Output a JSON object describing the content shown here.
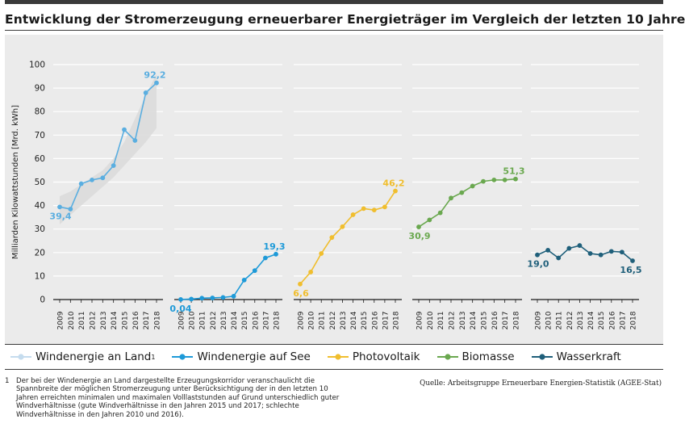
{
  "title": "Entwicklung der Stromerzeugung erneuerbarer Energieträger im Vergleich der letzten 10 Jahre",
  "chart_data": {
    "type": "line",
    "ylabel": "Milliarden Kilowattstunden [Mrd. kWh]",
    "ylim": [
      0,
      100
    ],
    "yticks": [
      0,
      10,
      20,
      30,
      40,
      50,
      60,
      70,
      80,
      90,
      100
    ],
    "years": [
      "2009",
      "2010",
      "2011",
      "2012",
      "2013",
      "2014",
      "2015",
      "2016",
      "2017",
      "2018"
    ],
    "series": [
      {
        "name": "Windenergie an Land",
        "note": "1",
        "color": "#5aaee0",
        "values": [
          39.4,
          38.5,
          49.3,
          50.9,
          51.8,
          57.0,
          72.3,
          67.7,
          88.0,
          92.2
        ],
        "corridor_min": [
          32,
          36,
          40,
          44,
          48,
          52,
          57,
          62,
          67,
          73
        ],
        "corridor_max": [
          44,
          46,
          49,
          52,
          55,
          60,
          67,
          77,
          87,
          96
        ],
        "start_label": "39,4",
        "end_label": "92,2"
      },
      {
        "name": "Windenergie auf See",
        "color": "#1e9ad8",
        "values": [
          0.04,
          0.2,
          0.6,
          0.7,
          0.9,
          1.4,
          8.3,
          12.3,
          17.7,
          19.3
        ],
        "start_label": "0,04",
        "end_label": "19,3"
      },
      {
        "name": "Photovoltaik",
        "color": "#f0be2e",
        "values": [
          6.6,
          11.7,
          19.6,
          26.4,
          31.0,
          36.1,
          38.7,
          38.1,
          39.4,
          46.2
        ],
        "start_label": "6,6",
        "end_label": "46,2"
      },
      {
        "name": "Biomasse",
        "color": "#6aa84f",
        "values": [
          30.9,
          33.9,
          36.9,
          43.2,
          45.5,
          48.3,
          50.3,
          50.9,
          50.9,
          51.3
        ],
        "start_label": "30,9",
        "end_label": "51,3"
      },
      {
        "name": "Wasserkraft",
        "color": "#1f5f7a",
        "values": [
          19.0,
          21.0,
          17.7,
          21.8,
          23.0,
          19.6,
          19.0,
          20.5,
          20.2,
          16.5
        ],
        "start_label": "19,0",
        "end_label": "16,5"
      }
    ]
  },
  "legend": [
    {
      "label": "Windenergie an Land",
      "sup": "1",
      "color": "#c5dcee",
      "icon": "light-line-marker-icon"
    },
    {
      "label": "Windenergie auf See",
      "sup": "",
      "color": "#1e9ad8",
      "icon": "line-marker-icon"
    },
    {
      "label": "Photovoltaik",
      "sup": "",
      "color": "#f0be2e",
      "icon": "line-marker-icon"
    },
    {
      "label": "Biomasse",
      "sup": "",
      "color": "#6aa84f",
      "icon": "line-marker-icon"
    },
    {
      "label": "Wasserkraft",
      "sup": "",
      "color": "#1f5f7a",
      "icon": "line-marker-icon"
    }
  ],
  "footnote": {
    "number": "1",
    "text": "Der bei der Windenergie an Land dargestellte Erzeugungskorridor veranschaulicht die Spannbreite der möglichen Stromerzeugung unter Berücksichtigung der in den letzten 10 Jahren erreichten minimalen und maximalen Volllaststunden auf Grund unterschiedlich guter Windverhältnisse (gute Windverhältnisse in den Jahren 2015 und 2017; schlechte Windverhältnisse in den Jahren 2010 und 2016)."
  },
  "source": "Quelle: Arbeitsgruppe Erneuerbare Energien-Statistik (AGEE-Stat)"
}
